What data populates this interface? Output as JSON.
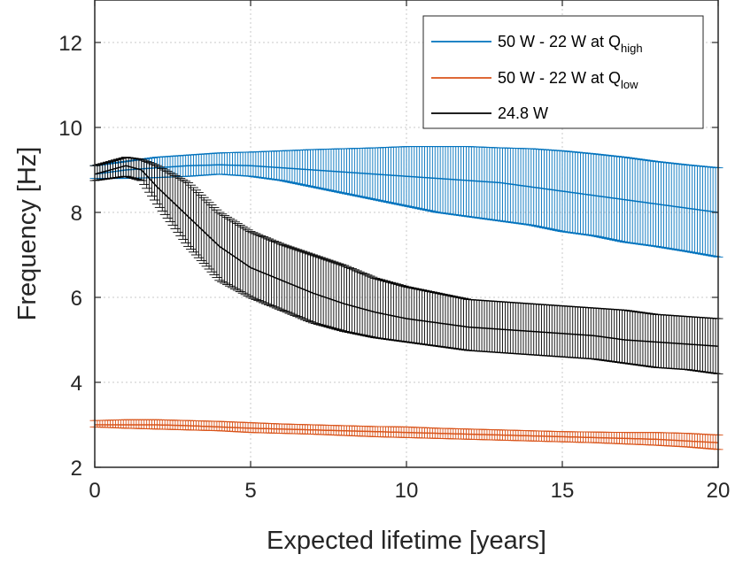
{
  "chart_data": {
    "type": "line",
    "title": "",
    "xlabel": "Expected lifetime [years]",
    "ylabel": "Frequency [Hz]",
    "xlim": [
      0,
      20
    ],
    "ylim": [
      2,
      13
    ],
    "xticks": [
      0,
      5,
      10,
      15,
      20
    ],
    "xtick_labels": [
      "0",
      "5",
      "10",
      "15",
      "20"
    ],
    "yticks": [
      2,
      4,
      6,
      8,
      10,
      12
    ],
    "ytick_labels": [
      "2",
      "4",
      "6",
      "8",
      "10",
      "12"
    ],
    "grid": true,
    "legend_position": "top-right",
    "series": [
      {
        "name": "50 W - 22 W at Q_high",
        "legend_main": "50 W - 22 W at Q",
        "legend_sub": "high",
        "color": "#0072BD",
        "x": [
          0,
          1,
          2,
          3,
          4,
          5,
          6,
          7,
          8,
          9,
          10,
          11,
          12,
          13,
          14,
          15,
          16,
          17,
          18,
          19,
          20
        ],
        "mean": [
          8.9,
          9.0,
          9.05,
          9.1,
          9.12,
          9.1,
          9.05,
          9.0,
          8.95,
          8.9,
          8.85,
          8.8,
          8.75,
          8.7,
          8.6,
          8.5,
          8.4,
          8.3,
          8.2,
          8.1,
          8.0
        ],
        "upper": [
          9.1,
          9.2,
          9.3,
          9.35,
          9.4,
          9.42,
          9.45,
          9.48,
          9.5,
          9.52,
          9.55,
          9.55,
          9.55,
          9.52,
          9.5,
          9.45,
          9.38,
          9.3,
          9.2,
          9.12,
          9.05
        ],
        "lower": [
          8.8,
          8.8,
          8.82,
          8.85,
          8.9,
          8.85,
          8.75,
          8.6,
          8.45,
          8.3,
          8.15,
          8.0,
          7.9,
          7.8,
          7.7,
          7.55,
          7.45,
          7.3,
          7.2,
          7.08,
          6.95
        ]
      },
      {
        "name": "50 W - 22 W at Q_low",
        "legend_main": "50 W - 22 W at Q",
        "legend_sub": "low",
        "color": "#D95319",
        "x": [
          0,
          1,
          2,
          3,
          4,
          5,
          6,
          7,
          8,
          9,
          10,
          11,
          12,
          13,
          14,
          15,
          16,
          17,
          18,
          19,
          20
        ],
        "mean": [
          3.0,
          3.0,
          3.0,
          2.98,
          2.95,
          2.92,
          2.9,
          2.88,
          2.86,
          2.84,
          2.82,
          2.8,
          2.78,
          2.76,
          2.74,
          2.72,
          2.7,
          2.68,
          2.66,
          2.62,
          2.58
        ],
        "upper": [
          3.1,
          3.12,
          3.12,
          3.1,
          3.08,
          3.05,
          3.02,
          3.0,
          2.98,
          2.96,
          2.95,
          2.92,
          2.9,
          2.88,
          2.86,
          2.84,
          2.83,
          2.82,
          2.82,
          2.8,
          2.76
        ],
        "lower": [
          2.95,
          2.92,
          2.9,
          2.88,
          2.86,
          2.82,
          2.8,
          2.78,
          2.75,
          2.72,
          2.7,
          2.68,
          2.66,
          2.64,
          2.62,
          2.6,
          2.58,
          2.55,
          2.52,
          2.48,
          2.42
        ]
      },
      {
        "name": "24.8 W",
        "legend_main": "24.8 W",
        "legend_sub": "",
        "color": "#000000",
        "x": [
          0,
          0.5,
          1,
          1.5,
          2,
          3,
          4,
          5,
          6,
          7,
          8,
          9,
          10,
          11,
          12,
          13,
          14,
          15,
          16,
          17,
          18,
          19,
          20
        ],
        "mean": [
          8.9,
          9.0,
          9.1,
          9.0,
          8.6,
          7.9,
          7.2,
          6.7,
          6.4,
          6.1,
          5.85,
          5.65,
          5.5,
          5.4,
          5.3,
          5.25,
          5.2,
          5.15,
          5.1,
          5.0,
          4.95,
          4.9,
          4.85
        ],
        "upper": [
          9.1,
          9.2,
          9.3,
          9.25,
          9.1,
          8.7,
          8.0,
          7.55,
          7.25,
          7.0,
          6.75,
          6.45,
          6.25,
          6.1,
          5.95,
          5.9,
          5.85,
          5.8,
          5.75,
          5.7,
          5.6,
          5.55,
          5.5
        ],
        "lower": [
          8.75,
          8.8,
          8.85,
          8.75,
          8.2,
          7.2,
          6.4,
          6.0,
          5.7,
          5.4,
          5.2,
          5.05,
          4.95,
          4.85,
          4.75,
          4.7,
          4.65,
          4.6,
          4.55,
          4.45,
          4.35,
          4.3,
          4.2
        ]
      }
    ]
  }
}
